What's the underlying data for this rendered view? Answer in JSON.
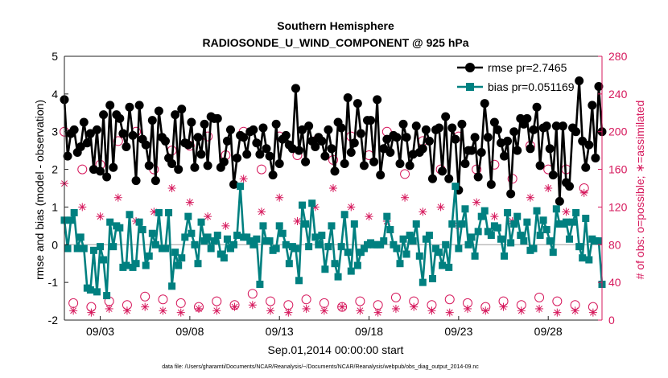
{
  "chart_data": {
    "type": "line",
    "title": "Southern Hemisphere",
    "subtitle": "RADIOSONDE_U_WIND_COMPONENT @ 925 hPa",
    "xlabel": "Sep.01,2014 00:00:00 start",
    "ylabel_left": "rmse and bias (model - observation)",
    "ylabel_right": "# of obs: o=possible; ∗=assimilated",
    "footnote": "data file: /Users/gharamti/Documents/NCAR/Reanalysis/~/Documents/NCAR/Reanalysis/webpub/obs_diag_output_2014-09.nc",
    "x_ticks": [
      "09/03",
      "09/08",
      "09/13",
      "09/18",
      "09/23",
      "09/28"
    ],
    "x_tick_days": [
      3,
      8,
      13,
      18,
      23,
      28
    ],
    "xlim_days": [
      1,
      31
    ],
    "ylim_left": [
      -2,
      5
    ],
    "yticks_left": [
      "-2",
      "-1",
      "0",
      "1",
      "2",
      "3",
      "4",
      "5"
    ],
    "ylim_right": [
      0,
      280
    ],
    "yticks_right": [
      "0",
      "40",
      "80",
      "120",
      "160",
      "200",
      "240",
      "280"
    ],
    "grid": false,
    "legend_position": "top-right",
    "colors": {
      "rmse": "#000000",
      "bias": "#008080",
      "obs": "#d6185c",
      "zero_line": "#b0b0b0"
    },
    "series": [
      {
        "name": "rmse pr=2.7465",
        "axis": "left",
        "marker": "circle",
        "values": [
          3.85,
          2.35,
          2.95,
          3.05,
          2.45,
          2.6,
          3.25,
          2.7,
          2.95,
          2.0,
          3.05,
          1.95,
          3.45,
          1.8,
          3.7,
          2.05,
          3.45,
          3.35,
          2.95,
          2.6,
          3.65,
          2.9,
          1.7,
          3.7,
          2.8,
          2.65,
          2.1,
          3.3,
          1.7,
          3.55,
          2.85,
          2.75,
          2.3,
          2.15,
          3.45,
          2.0,
          3.6,
          2.7,
          2.65,
          3.25,
          2.05,
          2.85,
          2.4,
          3.2,
          2.1,
          3.4,
          3.35,
          3.35,
          2.05,
          2.2,
          2.75,
          3.05,
          1.6,
          2.3,
          2.9,
          2.85,
          2.4,
          3.0,
          3.05,
          2.7,
          2.4,
          3.1,
          2.55,
          2.35,
          1.85,
          3.2,
          2.15,
          2.8,
          2.9,
          2.65,
          2.55,
          4.15,
          2.5,
          3.05,
          2.2,
          3.15,
          2.75,
          2.6,
          2.85,
          2.75,
          2.35,
          3.05,
          2.55,
          1.95,
          3.25,
          3.1,
          2.15,
          3.9,
          2.45,
          2.7,
          3.75,
          2.95,
          2.1,
          3.3,
          3.3,
          2.2,
          3.85,
          1.85,
          2.55,
          2.8,
          2.45,
          2.9,
          2.85,
          2.15,
          3.2,
          2.85,
          2.1,
          2.4,
          3.15,
          2.45,
          2.55,
          3.05,
          2.75,
          1.75,
          3.05,
          3.1,
          1.95,
          3.4,
          1.75,
          3.1,
          2.8,
          1.45,
          3.2,
          2.15,
          2.5,
          2.5,
          2.85,
          1.8,
          2.45,
          3.75,
          2.85,
          1.6,
          3.25,
          3.05,
          2.7,
          2.35,
          2.75,
          1.35,
          3.0,
          2.5,
          3.35,
          3.2,
          3.35,
          2.55,
          3.05,
          3.65,
          2.1,
          3.1,
          3.15,
          2.55,
          1.85,
          3.15,
          1.15,
          3.15,
          1.65,
          1.55,
          3.1,
          3.0,
          4.35,
          2.75,
          2.05,
          2.65,
          3.7,
          2.3,
          4.2,
          3.0
        ]
      },
      {
        "name": "bias pr=0.051169",
        "axis": "left",
        "marker": "square",
        "values": [
          0.65,
          -0.1,
          0.65,
          0.85,
          -0.1,
          0.2,
          -0.1,
          -1.15,
          -1.2,
          -0.15,
          -1.25,
          -0.05,
          -0.4,
          -1.35,
          0.6,
          -0.05,
          0.5,
          0.45,
          -0.6,
          -0.55,
          0.8,
          -0.6,
          -0.5,
          0.6,
          0.4,
          -0.55,
          -0.3,
          0.3,
          0.0,
          0.85,
          -0.1,
          -0.1,
          0.85,
          -1.1,
          -0.2,
          -0.55,
          -0.35,
          0.2,
          0.75,
          0.3,
          0.0,
          -0.5,
          0.6,
          0.1,
          0.2,
          -0.1,
          0.1,
          0.25,
          -0.25,
          -0.35,
          0.15,
          -0.1,
          0.0,
          0.25,
          1.55,
          0.2,
          0.2,
          0.1,
          0.0,
          0.15,
          -1.05,
          0.5,
          0.1,
          0.1,
          -0.15,
          -0.1,
          0.5,
          0.3,
          0.0,
          -0.5,
          -0.05,
          -0.1,
          -0.95,
          1.05,
          0.55,
          -0.05,
          1.1,
          0.2,
          0.0,
          0.25,
          -0.65,
          -0.05,
          0.5,
          -0.5,
          -0.85,
          -0.05,
          0.8,
          -0.2,
          -0.7,
          0.55,
          -0.55,
          -0.2,
          -0.1,
          0.0,
          0.05,
          0.0,
          0.0,
          0.0,
          0.1,
          0.75,
          0.4,
          0.0,
          -0.1,
          -0.5,
          0.15,
          -0.25,
          0.25,
          0.1,
          0.55,
          -0.3,
          -1.0,
          0.15,
          0.25,
          -0.9,
          -0.1,
          -0.2,
          -0.55,
          0.0,
          -0.6,
          0.55,
          1.55,
          -0.1,
          0.55,
          0.95,
          0.0,
          0.2,
          -0.3,
          0.35,
          0.75,
          0.9,
          0.35,
          0.25,
          0.5,
          0.45,
          0.15,
          -0.3,
          0.85,
          0.05,
          0.55,
          0.75,
          0.25,
          0.1,
          0.6,
          -0.15,
          -0.1,
          0.9,
          0.25,
          0.65,
          0.4,
          0.1,
          -0.2,
          0.95,
          0.55,
          0.55,
          0.6,
          0.15,
          0.6,
          0.85,
          -0.05,
          -0.35,
          0.7,
          -0.4,
          0.15,
          0.1,
          0.1,
          -1.05
        ]
      },
      {
        "name": "obs possible",
        "axis": "right",
        "marker": "open-circle",
        "values_pattern_00Z": [
          200,
          160,
          165,
          190,
          200,
          160,
          180,
          185,
          195,
          175,
          200,
          160,
          195,
          175,
          190,
          170,
          195,
          175,
          200,
          155,
          190,
          160,
          195,
          160,
          165,
          150,
          185,
          160,
          160,
          140
        ],
        "values_pattern_12Z": [
          18,
          14,
          20,
          16,
          25,
          22,
          18,
          14,
          20,
          16,
          28,
          20,
          16,
          22,
          18,
          14,
          20,
          16,
          24,
          20,
          16,
          22,
          18,
          14,
          20,
          16,
          24,
          20,
          16,
          14
        ]
      },
      {
        "name": "obs assimilated",
        "axis": "right",
        "marker": "asterisk",
        "values_pattern_00Z": [
          145,
          120,
          110,
          130,
          105,
          115,
          140,
          125,
          110,
          100,
          150,
          115,
          130,
          105,
          120,
          140,
          120,
          110,
          105,
          130,
          115,
          120,
          100,
          125,
          110,
          105,
          130,
          140,
          115,
          135
        ],
        "values_pattern_12Z": [
          10,
          8,
          12,
          10,
          14,
          10,
          8,
          12,
          10,
          14,
          16,
          10,
          8,
          12,
          10,
          14,
          10,
          8,
          12,
          14,
          10,
          8,
          12,
          10,
          14,
          10,
          12,
          8,
          10,
          8
        ]
      }
    ]
  }
}
